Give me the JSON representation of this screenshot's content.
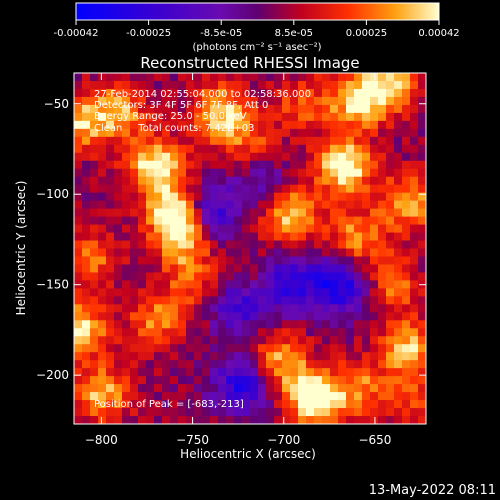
{
  "chart_data": {
    "type": "heatmap",
    "title": "Reconstructed RHESSI Image",
    "xlabel": "Heliocentric X (arcsec)",
    "ylabel": "Heliocentric Y (arcsec)",
    "xlim": [
      -815,
      -622
    ],
    "ylim": [
      -227,
      -33
    ],
    "xticks": [
      -800,
      -750,
      -700,
      -650
    ],
    "yticks": [
      -50,
      -100,
      -150,
      -200
    ],
    "colorbar": {
      "min": -0.00042,
      "max": 0.00042,
      "ticks": [
        "-0.00042",
        "-0.00025",
        "-8.5e-05",
        "8.5e-05",
        "0.00025",
        "0.00042"
      ],
      "units": "(photons cm⁻² s⁻¹ asec⁻²)"
    },
    "annotations": [
      "27-Feb-2014 02:55:04.000 to 02:58:36.000",
      "Detectors: 3F 4F 5F 6F 7F 8F, Att 0",
      "Energy Range: 25.0 - 50.0 keV",
      "Clean     Total counts: 7.42E+03"
    ],
    "peak_label": "Position of Peak = [-683,-213]",
    "peak": [
      -683,
      -213
    ],
    "blobs": [
      {
        "x": -770,
        "y": -85,
        "amp": 0.0004
      },
      {
        "x": -760,
        "y": -110,
        "amp": 0.00036
      },
      {
        "x": -755,
        "y": -125,
        "amp": 0.0003
      },
      {
        "x": -790,
        "y": -55,
        "amp": 0.00028
      },
      {
        "x": -812,
        "y": -60,
        "amp": 0.0003
      },
      {
        "x": -805,
        "y": -135,
        "amp": 0.00022
      },
      {
        "x": -812,
        "y": -175,
        "amp": 0.00035
      },
      {
        "x": -800,
        "y": -210,
        "amp": 0.0003
      },
      {
        "x": -770,
        "y": -170,
        "amp": 0.00024
      },
      {
        "x": -735,
        "y": -55,
        "amp": 0.00034
      },
      {
        "x": -718,
        "y": -72,
        "amp": 0.00018
      },
      {
        "x": -690,
        "y": -50,
        "amp": 0.00018
      },
      {
        "x": -660,
        "y": -48,
        "amp": 0.00036
      },
      {
        "x": -640,
        "y": -40,
        "amp": 0.0003
      },
      {
        "x": -667,
        "y": -85,
        "amp": 0.00042
      },
      {
        "x": -660,
        "y": -125,
        "amp": 0.00028
      },
      {
        "x": -632,
        "y": -105,
        "amp": 0.0003
      },
      {
        "x": -642,
        "y": -150,
        "amp": 0.00026
      },
      {
        "x": -632,
        "y": -185,
        "amp": 0.00032
      },
      {
        "x": -683,
        "y": -213,
        "amp": 0.00042
      },
      {
        "x": -658,
        "y": -208,
        "amp": 0.00024
      },
      {
        "x": -700,
        "y": -195,
        "amp": 0.00018
      },
      {
        "x": -720,
        "y": -150,
        "amp": 0.00016
      },
      {
        "x": -750,
        "y": -150,
        "amp": 0.00018
      },
      {
        "x": -697,
        "y": -110,
        "amp": 0.00036
      },
      {
        "x": -705,
        "y": -190,
        "amp": 0.00014
      },
      {
        "x": -625,
        "y": -215,
        "amp": 0.00018
      },
      {
        "x": -740,
        "y": -110,
        "amp": -0.0003
      },
      {
        "x": -725,
        "y": -160,
        "amp": -0.00034
      },
      {
        "x": -722,
        "y": -205,
        "amp": -0.00036
      },
      {
        "x": -700,
        "y": -150,
        "amp": -0.0003
      },
      {
        "x": -675,
        "y": -150,
        "amp": -0.00028
      },
      {
        "x": -660,
        "y": -150,
        "amp": -0.0002
      },
      {
        "x": -710,
        "y": -95,
        "amp": -0.00018
      }
    ]
  },
  "footer": {
    "timestamp": "13-May-2022 08:11"
  }
}
